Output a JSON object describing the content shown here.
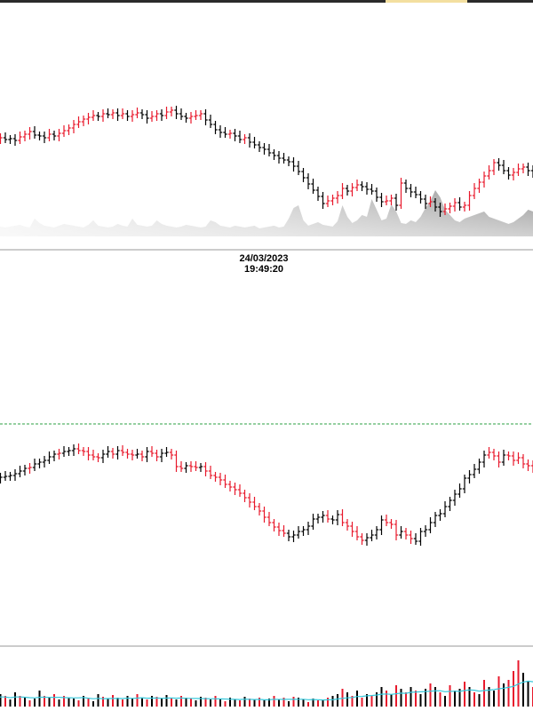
{
  "timestamp": {
    "date": "24/03/2023",
    "time": "19:49:20"
  },
  "colors": {
    "up": "#000000",
    "down": "#e8192c",
    "baseline": "#2ea043",
    "volume_avg": "#37c9dc",
    "separator": "#9a9a9a",
    "area_fill_light": "#f2f2f2",
    "area_fill_dark": "#9a9a9a"
  },
  "chart_data": [
    {
      "type": "bar",
      "panel": "top",
      "description": "OHLC bars, approximate closes",
      "closes": [
        156,
        155,
        157,
        156,
        158,
        154,
        151,
        148,
        152,
        153,
        155,
        151,
        153,
        150,
        147,
        144,
        140,
        137,
        134,
        132,
        130,
        131,
        128,
        129,
        127,
        130,
        128,
        131,
        129,
        127,
        129,
        133,
        131,
        128,
        130,
        126,
        124,
        128,
        131,
        133,
        131,
        130,
        128,
        135,
        140,
        146,
        149,
        151,
        150,
        153,
        157,
        155,
        160,
        163,
        166,
        168,
        172,
        175,
        178,
        180,
        182,
        187,
        193,
        200,
        207,
        214,
        221,
        229,
        226,
        223,
        220,
        212,
        215,
        211,
        208,
        210,
        213,
        215,
        222,
        227,
        226,
        223,
        231,
        206,
        212,
        216,
        219,
        224,
        229,
        227,
        233,
        238,
        235,
        232,
        228,
        233,
        231,
        220,
        212,
        205,
        198,
        192,
        183,
        186,
        192,
        197,
        194,
        190,
        188,
        192,
        196
      ],
      "ups": [
        1,
        0,
        1,
        1,
        1,
        0,
        0,
        0,
        1,
        1,
        1,
        0,
        1,
        0,
        0,
        0,
        0,
        0,
        0,
        0,
        0,
        1,
        0,
        1,
        0,
        1,
        0,
        1,
        0,
        0,
        1,
        1,
        0,
        0,
        1,
        0,
        0,
        1,
        1,
        1,
        0,
        0,
        0,
        1,
        1,
        1,
        1,
        1,
        0,
        1,
        1,
        0,
        1,
        1,
        1,
        1,
        1,
        1,
        1,
        1,
        1,
        1,
        1,
        1,
        1,
        1,
        1,
        1,
        0,
        0,
        0,
        0,
        1,
        0,
        0,
        1,
        1,
        1,
        1,
        1,
        0,
        0,
        1,
        0,
        1,
        1,
        1,
        1,
        1,
        0,
        1,
        1,
        0,
        0,
        0,
        1,
        0,
        0,
        0,
        0,
        0,
        0,
        0,
        1,
        1,
        1,
        0,
        0,
        0,
        1,
        1
      ],
      "area_profile": [
        12,
        11,
        10,
        11,
        12,
        13,
        11,
        10,
        20,
        15,
        12,
        11,
        10,
        12,
        14,
        13,
        12,
        11,
        10,
        13,
        18,
        12,
        11,
        10,
        11,
        14,
        12,
        11,
        20,
        13,
        12,
        11,
        12,
        18,
        14,
        12,
        11,
        10,
        11,
        13,
        12,
        11,
        10,
        11,
        18,
        16,
        12,
        11,
        10,
        12,
        11,
        10,
        11,
        12,
        9,
        10,
        11,
        12,
        10,
        11,
        20,
        32,
        35,
        18,
        12,
        14,
        16,
        13,
        12,
        11,
        17,
        35,
        22,
        15,
        18,
        24,
        22,
        42,
        30,
        18,
        20,
        36,
        28,
        15,
        14,
        18,
        16,
        22,
        32,
        40,
        52,
        44,
        30,
        24,
        18,
        16,
        20,
        22,
        24,
        26,
        28,
        22,
        20,
        18,
        16,
        14,
        16,
        20,
        24,
        30,
        28
      ]
    },
    {
      "type": "bar",
      "panel": "middle",
      "description": "OHLC bars, approximate closes",
      "closes": [
        538,
        537,
        536,
        535,
        533,
        530,
        527,
        526,
        522,
        520,
        518,
        514,
        511,
        510,
        508,
        507,
        505,
        507,
        508,
        512,
        514,
        515,
        511,
        508,
        511,
        507,
        509,
        511,
        512,
        511,
        514,
        508,
        510,
        514,
        510,
        509,
        512,
        525,
        527,
        524,
        525,
        526,
        525,
        530,
        535,
        537,
        540,
        545,
        548,
        551,
        555,
        560,
        565,
        570,
        575,
        582,
        588,
        593,
        597,
        600,
        604,
        602,
        598,
        596,
        592,
        584,
        582,
        580,
        584,
        585,
        579,
        588,
        592,
        598,
        604,
        608,
        605,
        602,
        596,
        585,
        588,
        590,
        602,
        598,
        602,
        606,
        609,
        598,
        596,
        588,
        580,
        578,
        570,
        563,
        556,
        550,
        538,
        534,
        528,
        520,
        512,
        509,
        513,
        520,
        512,
        513,
        518,
        515,
        522,
        524,
        528
      ],
      "ups": [
        1,
        1,
        1,
        1,
        1,
        1,
        1,
        0,
        1,
        1,
        1,
        1,
        1,
        0,
        1,
        1,
        1,
        0,
        0,
        0,
        0,
        0,
        1,
        1,
        0,
        1,
        0,
        0,
        0,
        1,
        0,
        1,
        0,
        0,
        1,
        1,
        0,
        0,
        0,
        1,
        0,
        0,
        1,
        0,
        0,
        0,
        0,
        0,
        0,
        0,
        0,
        0,
        0,
        0,
        0,
        0,
        0,
        0,
        0,
        0,
        1,
        1,
        1,
        1,
        1,
        1,
        1,
        1,
        0,
        1,
        1,
        0,
        0,
        0,
        0,
        0,
        1,
        1,
        1,
        1,
        0,
        0,
        0,
        1,
        0,
        0,
        1,
        1,
        1,
        1,
        1,
        1,
        1,
        1,
        1,
        1,
        1,
        1,
        1,
        1,
        1,
        0,
        0,
        0,
        1,
        0,
        0,
        0,
        0,
        0,
        0
      ],
      "baseline": 477
    },
    {
      "type": "bar",
      "panel": "volume",
      "description": "volume histogram, relative heights",
      "values": [
        10,
        14,
        12,
        8,
        16,
        12,
        10,
        7,
        9,
        18,
        12,
        10,
        14,
        8,
        12,
        10,
        9,
        7,
        12,
        10,
        6,
        14,
        11,
        9,
        13,
        10,
        8,
        12,
        9,
        14,
        10,
        8,
        12,
        11,
        9,
        13,
        10,
        8,
        12,
        10,
        9,
        7,
        11,
        10,
        8,
        12,
        9,
        6,
        10,
        8,
        7,
        11,
        9,
        8,
        10,
        7,
        9,
        12,
        8,
        10,
        6,
        11,
        10,
        8,
        5,
        9,
        7,
        8,
        10,
        12,
        14,
        20,
        16,
        12,
        18,
        10,
        14,
        12,
        16,
        22,
        18,
        14,
        24,
        20,
        16,
        22,
        18,
        14,
        20,
        26,
        22,
        16,
        12,
        24,
        18,
        20,
        28,
        22,
        16,
        14,
        30,
        22,
        18,
        34,
        26,
        30,
        40,
        52,
        38,
        28,
        22
      ],
      "ups": [
        0,
        1,
        0,
        1,
        1,
        0,
        1,
        0,
        1,
        1,
        0,
        1,
        0,
        1,
        0,
        1,
        1,
        0,
        1,
        0,
        1,
        1,
        0,
        1,
        0,
        1,
        0,
        1,
        1,
        0,
        1,
        0,
        1,
        0,
        1,
        1,
        0,
        1,
        0,
        1,
        0,
        1,
        1,
        0,
        1,
        0,
        1,
        0,
        1,
        1,
        0,
        1,
        0,
        1,
        0,
        1,
        1,
        0,
        1,
        0,
        1,
        0,
        1,
        1,
        0,
        1,
        0,
        1,
        0,
        1,
        1,
        0,
        1,
        0,
        1,
        0,
        1,
        0,
        1,
        1,
        0,
        1,
        0,
        1,
        0,
        1,
        0,
        1,
        1,
        0,
        1,
        0,
        1,
        0,
        1,
        1,
        0,
        1,
        0,
        1,
        0,
        1,
        1,
        0,
        1,
        0,
        0,
        0,
        1,
        1,
        0
      ]
    }
  ]
}
